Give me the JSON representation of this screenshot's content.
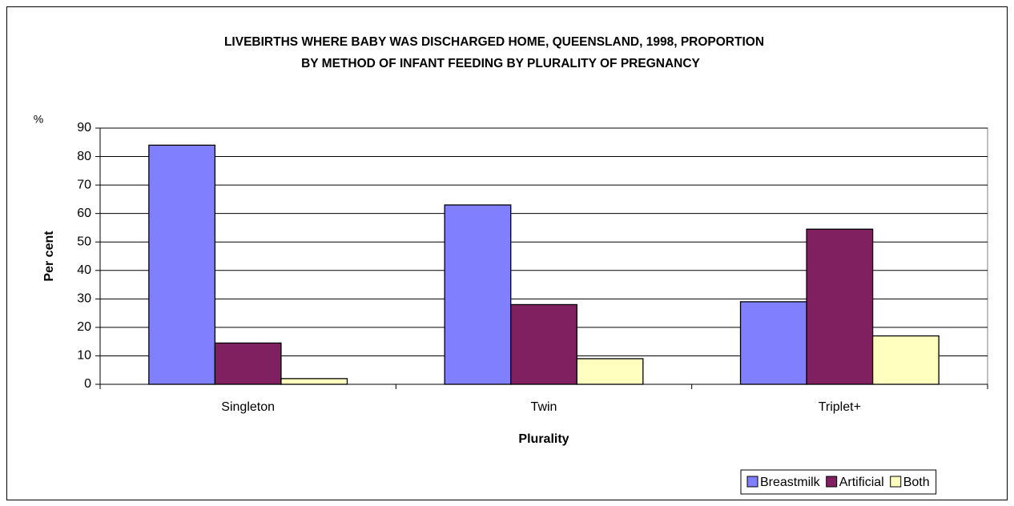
{
  "chart_data": {
    "type": "bar",
    "title": [
      "LIVEBIRTHS WHERE BABY WAS DISCHARGED HOME, QUEENSLAND, 1998,  PROPORTION",
      "BY METHOD OF INFANT FEEDING BY PLURALITY OF PREGNANCY"
    ],
    "unit_label": "%",
    "x_label": "Plurality",
    "y_label": "Per cent",
    "categories": [
      "Singleton",
      "Twin",
      "Triplet+"
    ],
    "series": [
      {
        "name": "Breastmilk",
        "color": "#8080ff",
        "values": [
          84,
          63,
          29
        ]
      },
      {
        "name": "Artificial",
        "color": "#802060",
        "values": [
          14.5,
          28,
          54.5
        ]
      },
      {
        "name": "Both",
        "color": "#ffffc0",
        "values": [
          2,
          9,
          17
        ]
      }
    ],
    "ylim": [
      0,
      90
    ],
    "yticks": [
      0,
      10,
      20,
      30,
      40,
      50,
      60,
      70,
      80,
      90
    ],
    "grid": true,
    "legend": "bottom-right"
  }
}
